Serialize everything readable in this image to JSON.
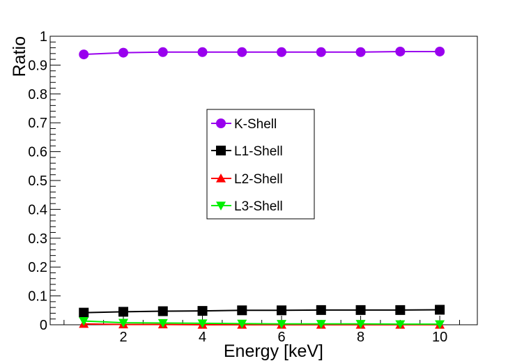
{
  "chart_data": {
    "type": "line",
    "title": "",
    "xlabel": "Energy [keV]",
    "ylabel": "Ratio",
    "xlim": [
      0.15,
      10.95
    ],
    "ylim": [
      0,
      1
    ],
    "x_ticks": [
      2,
      4,
      6,
      8,
      10
    ],
    "y_ticks": [
      0,
      0.1,
      0.2,
      0.3,
      0.4,
      0.5,
      0.6,
      0.7,
      0.8,
      0.9,
      1
    ],
    "y_tick_labels": [
      "0",
      "0.1",
      "0.2",
      "0.3",
      "0.4",
      "0.5",
      "0.6",
      "0.7",
      "0.8",
      "0.9",
      "1"
    ],
    "grid": false,
    "legend_position": "center",
    "x": [
      1,
      2,
      3,
      4,
      5,
      6,
      7,
      8,
      9,
      10
    ],
    "series": [
      {
        "name": "K-Shell",
        "color": "#9900ee",
        "marker": "circle",
        "values": [
          0.937,
          0.943,
          0.945,
          0.945,
          0.945,
          0.945,
          0.945,
          0.945,
          0.947,
          0.947
        ]
      },
      {
        "name": "L1-Shell",
        "color": "#000000",
        "marker": "square",
        "values": [
          0.042,
          0.045,
          0.047,
          0.048,
          0.05,
          0.05,
          0.051,
          0.051,
          0.051,
          0.052
        ]
      },
      {
        "name": "L2-Shell",
        "color": "#ff0000",
        "marker": "triangle-up",
        "values": [
          0.003,
          0.001,
          0.001,
          0.0,
          0.0,
          0.0,
          0.0,
          0.0,
          0.0,
          0.0
        ]
      },
      {
        "name": "L3-Shell",
        "color": "#00ee00",
        "marker": "triangle-down",
        "values": [
          0.013,
          0.007,
          0.006,
          0.005,
          0.004,
          0.003,
          0.003,
          0.003,
          0.002,
          0.002
        ]
      }
    ]
  }
}
